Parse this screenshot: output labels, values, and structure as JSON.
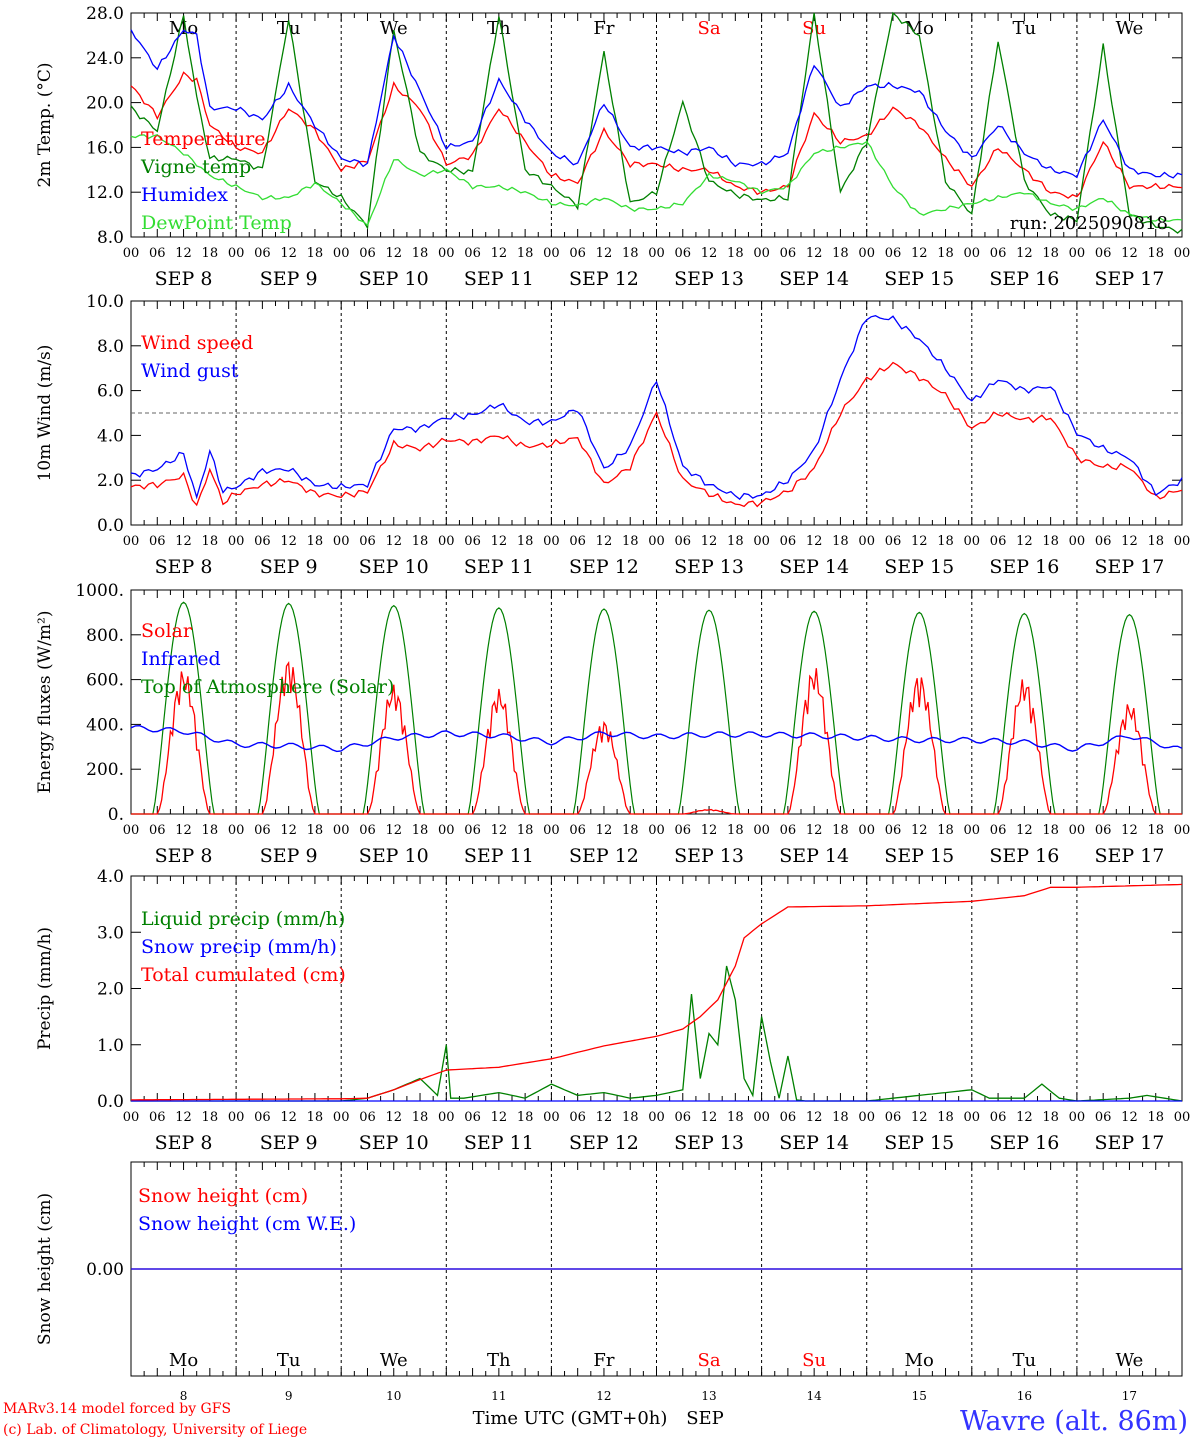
{
  "days": [
    {
      "abbr": "Mo",
      "date": "SEP  8",
      "num": "8",
      "weekend": false
    },
    {
      "abbr": "Tu",
      "date": "SEP  9",
      "num": "9",
      "weekend": false
    },
    {
      "abbr": "We",
      "date": "SEP 10",
      "num": "10",
      "weekend": false
    },
    {
      "abbr": "Th",
      "date": "SEP 11",
      "num": "11",
      "weekend": false
    },
    {
      "abbr": "Fr",
      "date": "SEP 12",
      "num": "12",
      "weekend": false
    },
    {
      "abbr": "Sa",
      "date": "SEP 13",
      "num": "13",
      "weekend": true
    },
    {
      "abbr": "Su",
      "date": "SEP 14",
      "num": "14",
      "weekend": true
    },
    {
      "abbr": "Mo",
      "date": "SEP 15",
      "num": "15",
      "weekend": false
    },
    {
      "abbr": "Tu",
      "date": "SEP 16",
      "num": "16",
      "weekend": false
    },
    {
      "abbr": "We",
      "date": "SEP 17",
      "num": "17",
      "weekend": false
    }
  ],
  "hour_labels": [
    "00",
    "06",
    "12",
    "18"
  ],
  "final_hour_label": "00",
  "colors": {
    "red": "#ff0000",
    "green": "#008000",
    "blue": "#0000ff",
    "lightgreen": "#33dd33",
    "weekend": "#ff0000",
    "station": "#3333ff"
  },
  "run_label": "run: 2025090818",
  "credits": [
    "MARv3.14 model forced by GFS",
    "(c) Lab. of Climatology, University of Liege"
  ],
  "xlabel": "Time UTC (GMT+0h)",
  "month": "SEP",
  "station": "Wavre (alt. 86m)",
  "chart_data": [
    {
      "type": "line",
      "id": "temp",
      "ylabel": "2m Temp. (°C)",
      "ylim": [
        8,
        28
      ],
      "yticks": [
        "8.0",
        "12.0",
        "16.0",
        "20.0",
        "24.0",
        "28.0"
      ],
      "ytick_values": [
        8,
        12,
        16,
        20,
        24,
        28
      ],
      "series": [
        {
          "name": "Temperature",
          "color": "red",
          "x": [
            0,
            6,
            12,
            15,
            18,
            24,
            30,
            36,
            42,
            48,
            54,
            60,
            66,
            72,
            78,
            84,
            90,
            96,
            102,
            108,
            114,
            120,
            126,
            132,
            138,
            144,
            150,
            156,
            162,
            168,
            174,
            180,
            186,
            192,
            198,
            204,
            210,
            216,
            222,
            228,
            234,
            240
          ],
          "y": [
            21.5,
            18.8,
            22.5,
            22.0,
            18.0,
            16.0,
            15.5,
            19.5,
            17.5,
            14.0,
            14.8,
            21.5,
            19.5,
            14.5,
            15.3,
            19.5,
            16.5,
            13.5,
            12.8,
            17.5,
            14.5,
            14.5,
            14.0,
            14.0,
            12.5,
            12.0,
            12.5,
            19.0,
            16.5,
            17.0,
            19.5,
            18.0,
            15.0,
            12.5,
            16.0,
            14.0,
            12.0,
            11.5,
            16.5,
            12.5,
            12.5,
            12.5
          ]
        },
        {
          "name": "Vigne temp",
          "color": "green",
          "x": [
            0,
            6,
            12,
            15,
            18,
            24,
            30,
            36,
            42,
            48,
            54,
            60,
            66,
            72,
            78,
            84,
            90,
            96,
            102,
            108,
            114,
            120,
            126,
            132,
            138,
            144,
            150,
            156,
            162,
            168,
            174,
            180,
            186,
            192,
            198,
            204,
            210,
            216,
            222,
            228,
            234,
            240
          ],
          "y": [
            19.5,
            17.5,
            27.8,
            20.5,
            15.0,
            15.0,
            14.0,
            27.5,
            13.0,
            11.5,
            9.0,
            26.5,
            15.5,
            14.0,
            13.8,
            27.8,
            14.0,
            12.5,
            10.8,
            24.5,
            11.0,
            12.0,
            20.0,
            13.0,
            11.8,
            11.3,
            11.5,
            28.0,
            12.0,
            16.5,
            28.0,
            26.0,
            13.0,
            10.0,
            25.5,
            13.0,
            10.0,
            9.5,
            25.0,
            10.0,
            9.0,
            8.5
          ]
        },
        {
          "name": "Humidex",
          "color": "blue",
          "x": [
            0,
            6,
            12,
            15,
            18,
            24,
            30,
            36,
            42,
            48,
            54,
            60,
            66,
            72,
            78,
            84,
            90,
            96,
            102,
            108,
            114,
            120,
            126,
            132,
            138,
            144,
            150,
            156,
            162,
            168,
            174,
            180,
            186,
            192,
            198,
            204,
            210,
            216,
            222,
            228,
            234,
            240
          ],
          "y": [
            26.5,
            23.0,
            26.5,
            26.0,
            19.5,
            19.5,
            18.5,
            21.5,
            18.0,
            15.0,
            14.5,
            26.0,
            21.0,
            16.0,
            16.5,
            22.0,
            18.5,
            15.5,
            14.5,
            20.0,
            16.0,
            16.0,
            15.5,
            16.0,
            14.5,
            14.5,
            15.5,
            23.5,
            19.5,
            21.5,
            21.5,
            21.0,
            17.5,
            15.0,
            18.0,
            15.5,
            14.0,
            13.5,
            18.5,
            14.0,
            13.5,
            13.5
          ]
        },
        {
          "name": "DewPoint Temp",
          "color": "lightgreen",
          "x": [
            0,
            6,
            12,
            15,
            18,
            24,
            30,
            36,
            42,
            48,
            54,
            60,
            66,
            72,
            78,
            84,
            90,
            96,
            102,
            108,
            114,
            120,
            126,
            132,
            138,
            144,
            150,
            156,
            162,
            168,
            174,
            180,
            186,
            192,
            198,
            204,
            210,
            216,
            222,
            228,
            234,
            240
          ],
          "y": [
            17.0,
            17.0,
            15.5,
            14.5,
            13.5,
            12.5,
            11.5,
            11.5,
            12.8,
            11.0,
            9.0,
            15.0,
            13.5,
            14.0,
            12.5,
            12.5,
            12.0,
            11.0,
            10.8,
            11.5,
            10.5,
            10.5,
            11.0,
            13.5,
            13.0,
            12.0,
            12.5,
            15.5,
            16.0,
            16.5,
            12.5,
            10.0,
            10.5,
            11.0,
            11.5,
            12.0,
            11.0,
            10.5,
            11.5,
            10.0,
            9.5,
            9.5
          ]
        }
      ],
      "legend": [
        "Temperature",
        "Vigne temp",
        "Humidex",
        "DewPoint Temp"
      ]
    },
    {
      "type": "line",
      "id": "wind",
      "ylabel": "10m Wind (m/s)",
      "ylim": [
        0,
        10
      ],
      "yticks": [
        "0.0",
        "2.0",
        "4.0",
        "6.0",
        "8.0",
        "10.0"
      ],
      "ytick_values": [
        0,
        2,
        4,
        6,
        8,
        10
      ],
      "ref_line": 5.0,
      "series": [
        {
          "name": "Wind speed",
          "color": "red",
          "x": [
            0,
            6,
            12,
            15,
            18,
            21,
            24,
            30,
            36,
            42,
            48,
            54,
            60,
            66,
            72,
            78,
            84,
            90,
            96,
            102,
            108,
            114,
            120,
            126,
            132,
            138,
            144,
            150,
            156,
            162,
            168,
            174,
            180,
            186,
            192,
            198,
            204,
            210,
            216,
            222,
            228,
            234,
            240
          ],
          "y": [
            1.7,
            1.8,
            2.2,
            0.8,
            2.5,
            1.0,
            1.4,
            1.8,
            2.0,
            1.4,
            1.3,
            1.5,
            3.6,
            3.4,
            3.8,
            3.7,
            4.0,
            3.5,
            3.6,
            3.9,
            1.8,
            2.6,
            5.0,
            2.0,
            1.4,
            0.9,
            1.0,
            1.5,
            2.5,
            5.0,
            6.5,
            7.2,
            6.6,
            5.8,
            4.3,
            5.0,
            4.7,
            4.8,
            3.0,
            2.6,
            2.6,
            1.2,
            1.6
          ]
        },
        {
          "name": "Wind gust",
          "color": "blue",
          "x": [
            0,
            6,
            12,
            15,
            18,
            21,
            24,
            30,
            36,
            42,
            48,
            54,
            60,
            66,
            72,
            78,
            84,
            90,
            96,
            102,
            108,
            114,
            120,
            126,
            132,
            138,
            144,
            150,
            156,
            162,
            168,
            174,
            180,
            186,
            192,
            198,
            204,
            210,
            216,
            222,
            228,
            234,
            240
          ],
          "y": [
            2.2,
            2.5,
            3.2,
            1.2,
            3.3,
            1.5,
            1.7,
            2.4,
            2.5,
            1.8,
            1.7,
            1.8,
            4.3,
            4.3,
            4.8,
            4.9,
            5.4,
            4.6,
            4.6,
            5.2,
            2.5,
            3.5,
            6.5,
            2.6,
            1.8,
            1.3,
            1.3,
            2.0,
            3.3,
            6.5,
            9.3,
            9.2,
            8.3,
            7.0,
            5.5,
            6.5,
            6.0,
            6.2,
            4.1,
            3.4,
            3.0,
            1.4,
            2.0
          ]
        }
      ],
      "legend": [
        "Wind speed",
        "Wind gust"
      ]
    },
    {
      "type": "line",
      "id": "flux",
      "ylabel": "Energy fluxes (W/m²)",
      "ylim": [
        0,
        1000
      ],
      "yticks": [
        "0.",
        "200.",
        "400.",
        "600.",
        "800.",
        "1000."
      ],
      "ytick_values": [
        0,
        200,
        400,
        600,
        800,
        1000
      ],
      "toa_peaks": [
        945,
        940,
        930,
        920,
        915,
        910,
        905,
        900,
        895,
        890
      ],
      "solar_peaks": [
        650,
        700,
        580,
        560,
        420,
        20,
        660,
        630,
        610,
        500
      ],
      "infrared": {
        "x": [
          0,
          12,
          24,
          36,
          48,
          60,
          72,
          84,
          96,
          108,
          120,
          132,
          144,
          156,
          168,
          180,
          192,
          204,
          216,
          228,
          240
        ],
        "y": [
          385,
          370,
          310,
          305,
          290,
          340,
          360,
          350,
          320,
          360,
          345,
          355,
          355,
          350,
          340,
          330,
          330,
          320,
          290,
          350,
          285
        ]
      },
      "series": [
        {
          "name": "Solar",
          "color": "red"
        },
        {
          "name": "Infrared",
          "color": "blue"
        },
        {
          "name": "Top of Atmosphere (Solar)",
          "color": "green"
        }
      ],
      "legend": [
        "Solar",
        "Infrared",
        "Top of Atmosphere (Solar)"
      ]
    },
    {
      "type": "line",
      "id": "precip",
      "ylabel": "Precip (mm/h)",
      "ylim": [
        0,
        4
      ],
      "yticks": [
        "0.0",
        "1.0",
        "2.0",
        "3.0",
        "4.0"
      ],
      "ytick_values": [
        0,
        1,
        2,
        3,
        4
      ],
      "series": [
        {
          "name": "Liquid precip (mm/h)",
          "color": "green",
          "x": [
            0,
            48,
            54,
            60,
            66,
            70,
            72,
            73,
            76,
            84,
            90,
            96,
            102,
            108,
            114,
            120,
            126,
            128,
            130,
            132,
            134,
            136,
            138,
            140,
            142,
            144,
            146,
            148,
            150,
            152,
            154,
            156,
            168,
            192,
            196,
            204,
            208,
            212,
            216,
            228,
            232,
            240
          ],
          "y": [
            0,
            0,
            0.05,
            0.2,
            0.4,
            0.1,
            1.0,
            0.05,
            0.05,
            0.15,
            0.05,
            0.3,
            0.1,
            0.15,
            0.05,
            0.1,
            0.2,
            1.9,
            0.4,
            1.2,
            1.0,
            2.4,
            1.8,
            0.4,
            0.1,
            1.5,
            0.7,
            0.05,
            0.8,
            0.02,
            0,
            0,
            0,
            0.2,
            0.05,
            0.05,
            0.3,
            0.05,
            0,
            0.05,
            0.1,
            0
          ]
        },
        {
          "name": "Snow precip (mm/h)",
          "color": "blue",
          "x": [
            0,
            240
          ],
          "y": [
            0,
            0
          ]
        },
        {
          "name": "Total cumulated (cm)",
          "color": "red",
          "x": [
            0,
            48,
            54,
            60,
            66,
            72,
            84,
            96,
            108,
            120,
            126,
            130,
            134,
            138,
            140,
            144,
            150,
            168,
            192,
            204,
            210,
            216,
            240
          ],
          "y": [
            0.02,
            0.04,
            0.05,
            0.2,
            0.38,
            0.55,
            0.6,
            0.75,
            0.98,
            1.15,
            1.28,
            1.5,
            1.8,
            2.4,
            2.9,
            3.15,
            3.45,
            3.47,
            3.55,
            3.65,
            3.8,
            3.8,
            3.85
          ]
        }
      ],
      "legend": [
        "Liquid precip (mm/h)",
        "Snow precip (mm/h)",
        "Total cumulated (cm)"
      ]
    },
    {
      "type": "line",
      "id": "snow",
      "ylabel": "Snow height (cm)",
      "ylim": [
        -1,
        1
      ],
      "yticks": [
        "0.00"
      ],
      "ytick_values": [
        0
      ],
      "series": [
        {
          "name": "Snow height (cm)",
          "color": "red",
          "x": [
            0,
            240
          ],
          "y": [
            0,
            0
          ]
        },
        {
          "name": "Snow height (cm W.E.)",
          "color": "blue",
          "x": [
            0,
            240
          ],
          "y": [
            0,
            0
          ]
        }
      ],
      "legend": [
        "Snow height (cm)",
        "Snow height (cm W.E.)"
      ]
    }
  ]
}
